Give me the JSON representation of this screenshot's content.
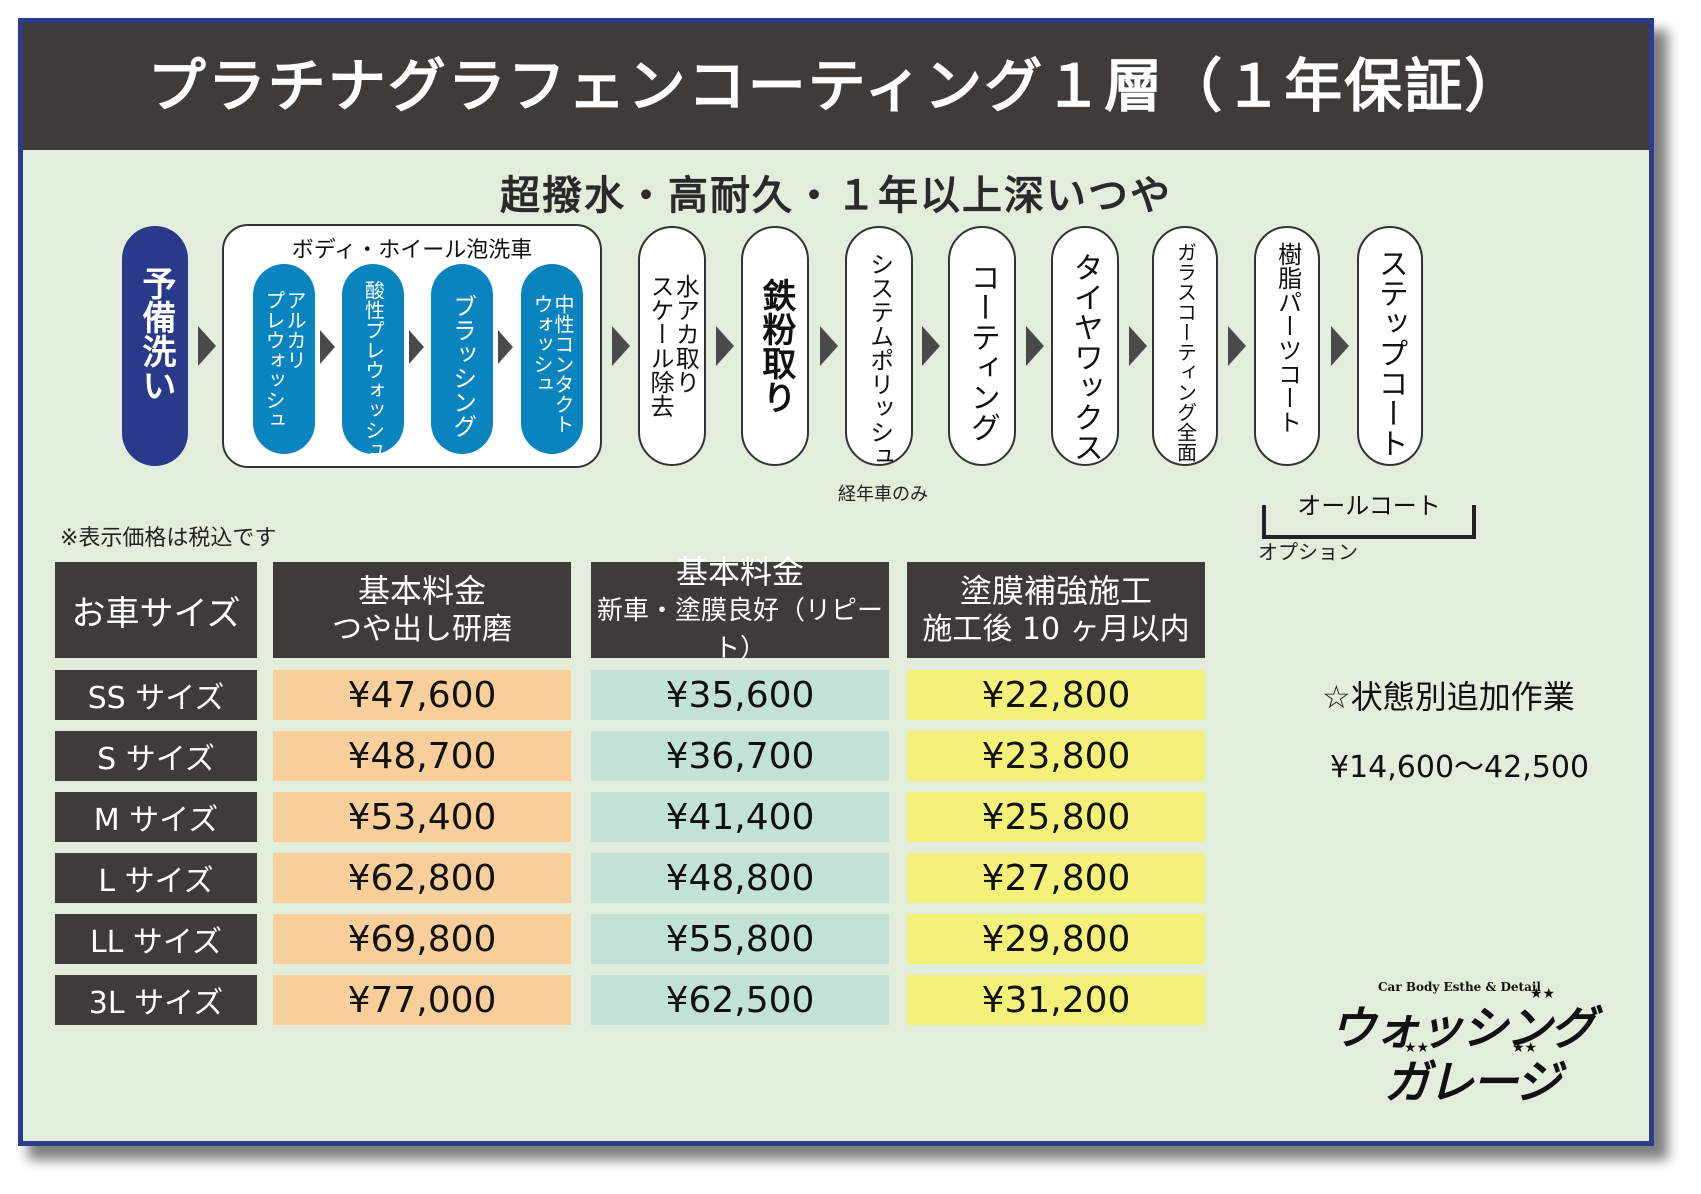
{
  "title": "プラチナグラフェンコーティング１層（１年保証）",
  "subtitle": "超撥水・高耐久・１年以上深いつや",
  "steps": {
    "pre_wash": "予備洗い",
    "group_label": "ボディ・ホイール泡洗車",
    "group_items": [
      "アルカリ\nプレウォッシュ",
      "酸性プレウォッシュ",
      "ブラッシング",
      "中性コンタクト\nウォッシュ"
    ],
    "water_stain": "水アカ取り\nスケール除去",
    "iron": "鉄粉取り",
    "polish": "システムポリッシュ",
    "coating": "コーティング",
    "tire": "タイヤワックス",
    "glass": "ガラスコーティング全面",
    "resin": "樹脂パーツコート",
    "step_coat": "ステップコート"
  },
  "notes": {
    "aged_only": "経年車のみ",
    "all_coat": "オールコート",
    "option": "オプション",
    "tax": "※表示価格は税込です"
  },
  "table": {
    "size_header": "お車サイズ",
    "headers": [
      {
        "l1": "基本料金",
        "l2": "つや出し研磨"
      },
      {
        "l1": "基本料金",
        "l2": "新車・塗膜良好（リピート）"
      },
      {
        "l1": "塗膜補強施工",
        "l2": "施工後 10 ヶ月以内"
      }
    ],
    "rows": [
      {
        "size": "SS サイズ",
        "p1": "¥47,600",
        "p2": "¥35,600",
        "p3": "¥22,800"
      },
      {
        "size": "S サイズ",
        "p1": "¥48,700",
        "p2": "¥36,700",
        "p3": "¥23,800"
      },
      {
        "size": "M サイズ",
        "p1": "¥53,400",
        "p2": "¥41,400",
        "p3": "¥25,800"
      },
      {
        "size": "L サイズ",
        "p1": "¥62,800",
        "p2": "¥48,800",
        "p3": "¥27,800"
      },
      {
        "size": "LL サイズ",
        "p1": "¥69,800",
        "p2": "¥55,800",
        "p3": "¥29,800"
      },
      {
        "size": "3L サイズ",
        "p1": "¥77,000",
        "p2": "¥62,500",
        "p3": "¥31,200"
      }
    ]
  },
  "extra": {
    "title": "☆状態別追加作業",
    "price": "¥14,600〜42,500"
  },
  "logo": {
    "tagline": "Car Body Esthe & Detail",
    "line1": "ウォッシング",
    "line2": "ガレージ"
  },
  "colors": {
    "header": "#3e3b38",
    "background": "#e2eddb",
    "border": "#2b3c8f",
    "pre_wash": "#2a3a8a",
    "foam_steps": "#0a84bf",
    "col1": "#f8cf9a",
    "col2": "#c3e2d7",
    "col3": "#f4f17a"
  }
}
